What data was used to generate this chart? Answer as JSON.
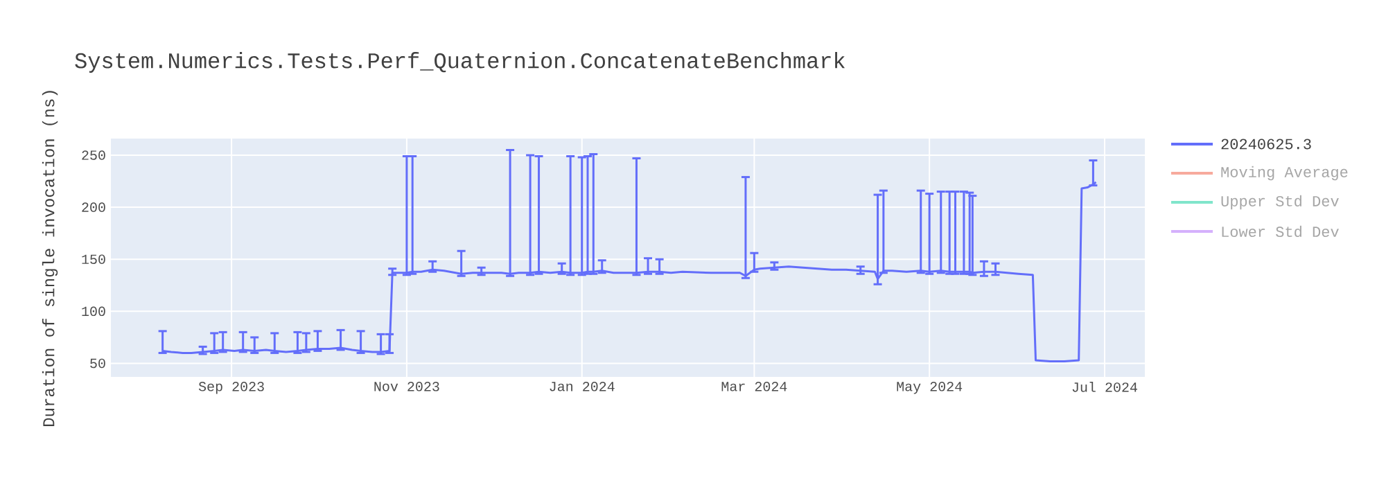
{
  "chart_data": {
    "type": "line",
    "title": "System.Numerics.Tests.Perf_Quaternion.ConcatenateBenchmark",
    "ylabel": "Duration of single invocation (ns)",
    "x": [
      "2023-08-08",
      "2023-08-11",
      "2023-08-15",
      "2023-08-18",
      "2023-08-22",
      "2023-08-26",
      "2023-08-29",
      "2023-09-02",
      "2023-09-05",
      "2023-09-09",
      "2023-09-13",
      "2023-09-16",
      "2023-09-20",
      "2023-09-24",
      "2023-09-27",
      "2023-10-01",
      "2023-10-05",
      "2023-10-09",
      "2023-10-13",
      "2023-10-16",
      "2023-10-20",
      "2023-10-23",
      "2023-10-26",
      "2023-10-27",
      "2023-11-01",
      "2023-11-03",
      "2023-11-06",
      "2023-11-10",
      "2023-11-14",
      "2023-11-18",
      "2023-11-20",
      "2023-11-24",
      "2023-11-27",
      "2023-12-01",
      "2023-12-04",
      "2023-12-07",
      "2023-12-10",
      "2023-12-14",
      "2023-12-17",
      "2023-12-21",
      "2023-12-25",
      "2023-12-28",
      "2024-01-01",
      "2024-01-03",
      "2024-01-05",
      "2024-01-08",
      "2024-01-12",
      "2024-01-16",
      "2024-01-20",
      "2024-01-24",
      "2024-01-28",
      "2024-02-01",
      "2024-02-05",
      "2024-02-15",
      "2024-02-25",
      "2024-02-27",
      "2024-03-01",
      "2024-03-03",
      "2024-03-08",
      "2024-03-13",
      "2024-03-18",
      "2024-03-23",
      "2024-03-28",
      "2024-04-02",
      "2024-04-07",
      "2024-04-12",
      "2024-04-13",
      "2024-04-15",
      "2024-04-18",
      "2024-04-23",
      "2024-04-28",
      "2024-05-01",
      "2024-05-05",
      "2024-05-08",
      "2024-05-10",
      "2024-05-13",
      "2024-05-15",
      "2024-05-16",
      "2024-05-20",
      "2024-05-24",
      "2024-05-28",
      "2024-06-01",
      "2024-06-06",
      "2024-06-07",
      "2024-06-12",
      "2024-06-17",
      "2024-06-22",
      "2024-06-23",
      "2024-06-25",
      "2024-06-27",
      "2024-06-28"
    ],
    "series": [
      {
        "name": "20240625.3",
        "color": "#636efa",
        "values": [
          62,
          61,
          60,
          60,
          61,
          62,
          63,
          62,
          63,
          62,
          63,
          62,
          61,
          62,
          63,
          64,
          64,
          65,
          63,
          62,
          61,
          61,
          62,
          137,
          137,
          138,
          138,
          140,
          139,
          137,
          136,
          137,
          137,
          137,
          137,
          136,
          137,
          137,
          138,
          137,
          138,
          137,
          137,
          138,
          138,
          139,
          137,
          137,
          137,
          138,
          138,
          137,
          138,
          137,
          137,
          134,
          140,
          141,
          142,
          143,
          142,
          141,
          140,
          140,
          139,
          138,
          131,
          139,
          139,
          138,
          139,
          138,
          139,
          138,
          138,
          138,
          138,
          137,
          138,
          138,
          137,
          136,
          135,
          53,
          52,
          52,
          53,
          218,
          219,
          222,
          224
        ],
        "errors": [
          [
            60,
            81
          ],
          null,
          null,
          null,
          [
            59,
            66
          ],
          [
            60,
            79
          ],
          [
            61,
            80
          ],
          null,
          [
            61,
            80
          ],
          [
            60,
            75
          ],
          null,
          [
            60,
            79
          ],
          null,
          [
            60,
            80
          ],
          [
            61,
            79
          ],
          [
            62,
            81
          ],
          null,
          [
            63,
            82
          ],
          null,
          [
            60,
            81
          ],
          null,
          [
            59,
            78
          ],
          [
            60,
            78
          ],
          [
            135,
            141
          ],
          [
            135,
            249
          ],
          [
            136,
            249
          ],
          null,
          [
            138,
            148
          ],
          null,
          null,
          [
            134,
            158
          ],
          null,
          [
            135,
            142
          ],
          null,
          null,
          [
            134,
            255
          ],
          null,
          [
            135,
            250
          ],
          [
            136,
            249
          ],
          null,
          [
            136,
            146
          ],
          [
            135,
            249
          ],
          [
            135,
            248
          ],
          [
            136,
            249
          ],
          [
            136,
            251
          ],
          [
            137,
            149
          ],
          null,
          null,
          [
            135,
            247
          ],
          [
            136,
            151
          ],
          [
            136,
            150
          ],
          null,
          null,
          null,
          null,
          [
            132,
            229
          ],
          [
            138,
            156
          ],
          null,
          [
            140,
            147
          ],
          null,
          null,
          null,
          null,
          null,
          [
            136,
            143
          ],
          null,
          [
            126,
            212
          ],
          [
            137,
            216
          ],
          null,
          null,
          [
            137,
            216
          ],
          [
            136,
            213
          ],
          [
            137,
            215
          ],
          [
            136,
            215
          ],
          [
            136,
            215
          ],
          [
            136,
            215
          ],
          [
            136,
            214
          ],
          [
            135,
            211
          ],
          [
            134,
            148
          ],
          [
            135,
            146
          ],
          null,
          null,
          null,
          null,
          null,
          null,
          null,
          null,
          null,
          [
            221,
            245
          ],
          null
        ]
      },
      {
        "name": "Moving Average",
        "color": "#f7aa9d",
        "values": [
          null,
          null,
          null,
          null,
          null,
          null,
          null,
          null,
          null,
          null,
          null,
          null,
          null,
          null,
          null,
          null,
          null,
          null,
          null,
          null,
          null,
          null,
          null,
          null,
          null,
          null,
          null,
          null,
          null,
          null,
          null,
          null,
          null,
          null,
          null,
          null,
          null,
          null,
          null,
          null,
          null,
          null,
          null,
          null,
          null,
          null,
          null,
          null,
          null,
          null,
          null,
          null,
          null,
          null,
          null,
          null,
          null,
          null,
          null,
          null,
          null,
          null,
          null,
          null,
          null,
          null,
          null,
          null,
          null,
          null,
          null,
          null,
          null,
          null,
          null,
          null,
          null,
          null,
          null,
          null,
          null,
          null,
          null,
          null,
          null,
          null,
          null,
          null,
          null,
          null,
          null
        ]
      },
      {
        "name": "Upper Std Dev",
        "color": "#80e5cb",
        "values": [
          null,
          null,
          null,
          null,
          null,
          null,
          null,
          null,
          null,
          null,
          null,
          null,
          null,
          null,
          null,
          null,
          null,
          null,
          null,
          null,
          null,
          null,
          null,
          null,
          null,
          null,
          null,
          null,
          null,
          null,
          null,
          null,
          null,
          null,
          null,
          null,
          null,
          null,
          null,
          null,
          null,
          null,
          null,
          null,
          null,
          null,
          null,
          null,
          null,
          null,
          null,
          null,
          null,
          null,
          null,
          null,
          null,
          null,
          null,
          null,
          null,
          null,
          null,
          null,
          null,
          null,
          null,
          null,
          null,
          null,
          null,
          null,
          null,
          null,
          null,
          null,
          null,
          null,
          null,
          null,
          null,
          null,
          null,
          null,
          null,
          null,
          null,
          null,
          null,
          null,
          null
        ]
      },
      {
        "name": "Lower Std Dev",
        "color": "#d5b1fc",
        "values": [
          null,
          null,
          null,
          null,
          null,
          null,
          null,
          null,
          null,
          null,
          null,
          null,
          null,
          null,
          null,
          null,
          null,
          null,
          null,
          null,
          null,
          null,
          null,
          null,
          null,
          null,
          null,
          null,
          null,
          null,
          null,
          null,
          null,
          null,
          null,
          null,
          null,
          null,
          null,
          null,
          null,
          null,
          null,
          null,
          null,
          null,
          null,
          null,
          null,
          null,
          null,
          null,
          null,
          null,
          null,
          null,
          null,
          null,
          null,
          null,
          null,
          null,
          null,
          null,
          null,
          null,
          null,
          null,
          null,
          null,
          null,
          null,
          null,
          null,
          null,
          null,
          null,
          null,
          null,
          null,
          null,
          null,
          null,
          null,
          null,
          null,
          null,
          null,
          null,
          null,
          null
        ]
      }
    ],
    "xlim": [
      "2023-07-21",
      "2024-07-15"
    ],
    "xticks": [
      {
        "value": "2023-09-01",
        "label": "Sep 2023"
      },
      {
        "value": "2023-11-01",
        "label": "Nov 2023"
      },
      {
        "value": "2024-01-01",
        "label": "Jan 2024"
      },
      {
        "value": "2024-03-01",
        "label": "Mar 2024"
      },
      {
        "value": "2024-05-01",
        "label": "May 2024"
      },
      {
        "value": "2024-07-01",
        "label": "Jul 2024"
      }
    ],
    "ylim": [
      37,
      266
    ],
    "yticks": [
      50,
      100,
      150,
      200,
      250
    ],
    "grid": true,
    "legend": "top right",
    "marker": "none",
    "line_style": "solid"
  }
}
